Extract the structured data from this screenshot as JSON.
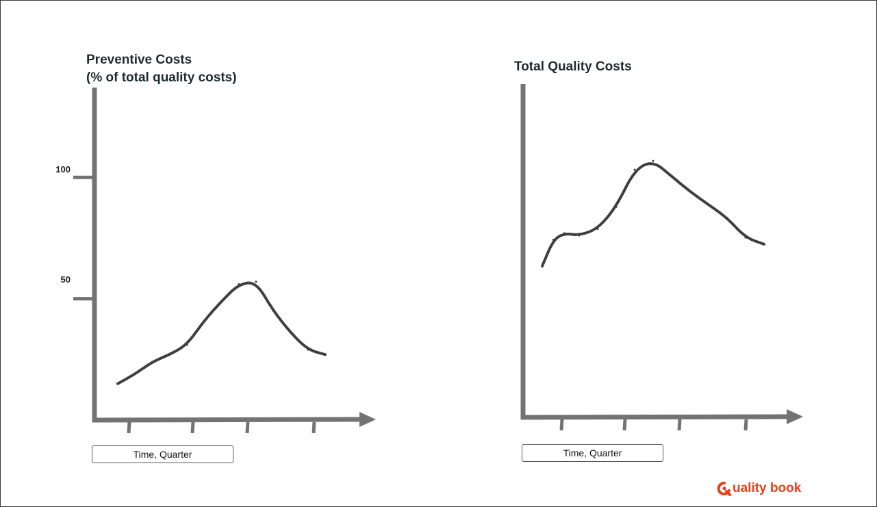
{
  "chart_data": [
    {
      "type": "line",
      "title_line1": "Preventive Costs",
      "title_line2": "(% of total quality costs)",
      "xlabel": "Time, Quarter",
      "ylabel": "",
      "yticks": [
        50,
        100
      ],
      "ylim": [
        0,
        137
      ],
      "x": [
        0,
        0.5,
        1,
        1.5,
        2,
        2.5,
        3,
        3.5,
        4,
        4.5,
        5,
        5.5,
        6
      ],
      "values": [
        15,
        19,
        24,
        27,
        31,
        41,
        49,
        56,
        57,
        45,
        36,
        29,
        27
      ],
      "line_color": "#3f3f3f",
      "axis_color": "#737373"
    },
    {
      "type": "line",
      "title_line1": "Total Quality Costs",
      "xlabel": "Time, Quarter",
      "ylabel": "",
      "yticks": [],
      "ylim": [
        0,
        152
      ],
      "x": [
        0,
        0.3,
        0.6,
        1,
        1.5,
        2,
        2.5,
        3,
        3.5,
        4,
        4.5,
        5,
        5.5,
        6
      ],
      "values": [
        69,
        81,
        84,
        83,
        86,
        96,
        113,
        117,
        110,
        103,
        97,
        91,
        82,
        79
      ],
      "line_color": "#3f3f3f",
      "axis_color": "#737373"
    }
  ],
  "logo": {
    "text": "uality book",
    "color": "#e8401c"
  }
}
